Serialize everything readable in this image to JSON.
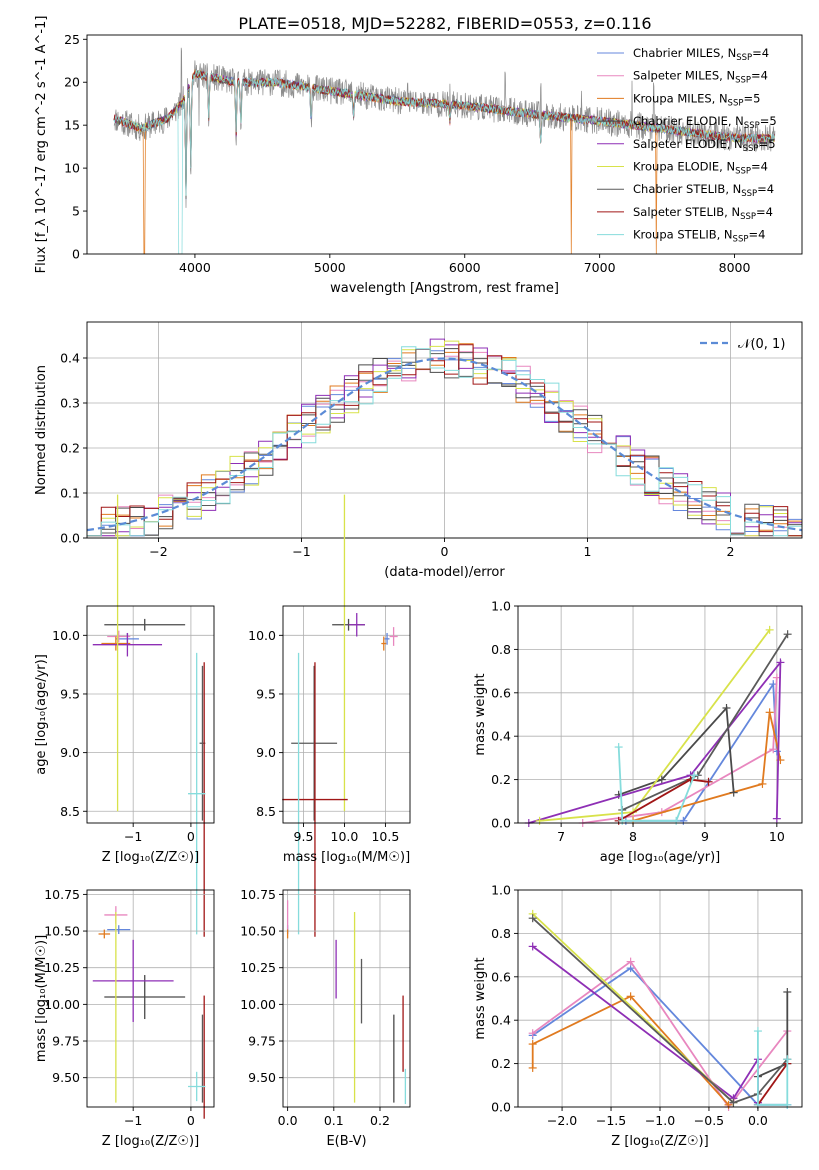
{
  "title": "PLATE=0518, MJD=52282, FIBERID=0553, z=0.116",
  "series_colors": [
    "#6487dc",
    "#e887bf",
    "#e07a1f",
    "#4a4a4a",
    "#8e2fb5",
    "#d8e24a",
    "#5a5a5a",
    "#a01616",
    "#86dcdc"
  ],
  "chart_data": [
    {
      "id": "spectrum",
      "type": "line",
      "title": "PLATE=0518, MJD=52282, FIBERID=0553, z=0.116",
      "xlabel": "wavelength [Angstrom, rest frame]",
      "ylabel": "Flux [f_λ 10^-17 erg cm^-2 s^-1 A^-1]",
      "xlim": [
        3200,
        8500
      ],
      "ylim": [
        0,
        25.5
      ],
      "xticks": [
        4000,
        5000,
        6000,
        7000,
        8000
      ],
      "yticks": [
        0,
        5,
        10,
        15,
        20,
        25
      ],
      "grid": false,
      "legend_position": "top-right",
      "legend": [
        {
          "text": "Chabrier MILES, N",
          "sub": "SSP",
          "tail": "=4",
          "color": "#6487dc"
        },
        {
          "text": "Salpeter MILES, N",
          "sub": "SSP",
          "tail": "=4",
          "color": "#e887bf"
        },
        {
          "text": "Kroupa MILES, N",
          "sub": "SSP",
          "tail": "=5",
          "color": "#e07a1f"
        },
        {
          "text": "Chabrier ELODIE, N",
          "sub": "SSP",
          "tail": "=5",
          "color": "#4a4a4a"
        },
        {
          "text": "Salpeter ELODIE, N",
          "sub": "SSP",
          "tail": "=5",
          "color": "#8e2fb5"
        },
        {
          "text": "Kroupa ELODIE, N",
          "sub": "SSP",
          "tail": "=4",
          "color": "#d8e24a"
        },
        {
          "text": "Chabrier STELIB, N",
          "sub": "SSP",
          "tail": "=4",
          "color": "#5a5a5a"
        },
        {
          "text": "Salpeter STELIB, N",
          "sub": "SSP",
          "tail": "=4",
          "color": "#a01616"
        },
        {
          "text": "Kroupa STELIB, N",
          "sub": "SSP",
          "tail": "=4",
          "color": "#86dcdc"
        }
      ],
      "observed_color": "#8c8c8c",
      "continuum": [
        [
          3400,
          15.8
        ],
        [
          3600,
          14.6
        ],
        [
          3800,
          15.8
        ],
        [
          3900,
          17.5
        ],
        [
          4000,
          21.0
        ],
        [
          4300,
          20.0
        ],
        [
          4600,
          20.0
        ],
        [
          5000,
          19.0
        ],
        [
          5500,
          17.8
        ],
        [
          6000,
          17.3
        ],
        [
          6500,
          16.3
        ],
        [
          7000,
          15.5
        ],
        [
          7500,
          14.5
        ],
        [
          8000,
          13.5
        ],
        [
          8300,
          13.5
        ]
      ],
      "absorption_lines": [
        [
          3934,
          12
        ],
        [
          3969,
          10
        ],
        [
          4102,
          5
        ],
        [
          4305,
          6
        ],
        [
          4340,
          5
        ],
        [
          4861,
          4
        ],
        [
          5175,
          3
        ],
        [
          5890,
          2
        ],
        [
          6563,
          3
        ]
      ],
      "spikes": [
        [
          3900,
          5
        ],
        [
          4030,
          -6
        ],
        [
          5577,
          3
        ],
        [
          5890,
          3
        ],
        [
          6300,
          5
        ],
        [
          6563,
          7
        ],
        [
          6865,
          4
        ],
        [
          7240,
          6
        ],
        [
          7400,
          5
        ]
      ],
      "drops_to_zero": [
        [
          3880,
          3905,
          "#86dcdc"
        ],
        [
          3620,
          3630,
          "#e07a1f"
        ],
        [
          6790,
          6795,
          "#e07a1f"
        ],
        [
          7415,
          7425,
          "#e07a1f"
        ]
      ]
    },
    {
      "id": "residuals",
      "type": "histogram",
      "xlabel": "(data-model)/error",
      "ylabel": "Normed distribution",
      "xlim": [
        -2.5,
        2.5
      ],
      "ylim": [
        0,
        0.48
      ],
      "xticks": [
        -2,
        -1,
        0,
        1,
        2
      ],
      "yticks": [
        0.0,
        0.1,
        0.2,
        0.3,
        0.4
      ],
      "grid": true,
      "legend_position": "top-right",
      "legend": [
        {
          "text": "𝒩(0, 1)",
          "color": "#5b8bd6",
          "style": "dashed"
        }
      ],
      "bin_width": 0.1,
      "noise_seed": 7
    },
    {
      "id": "age_vs_Z",
      "type": "errorbar",
      "xlabel": "Z [log₁₀(Z/Z☉)]",
      "ylabel": "age  [log₁₀(age/yr)]",
      "xlim": [
        -1.8,
        0.4
      ],
      "ylim": [
        8.4,
        10.25
      ],
      "xticks": [
        -1,
        0
      ],
      "yticks": [
        8.5,
        9.0,
        9.5,
        10.0
      ],
      "grid": true,
      "points": [
        {
          "x": -1.1,
          "y": 9.97,
          "xerr": 0.2,
          "yerr": 0.05,
          "color": "#6487dc"
        },
        {
          "x": -1.25,
          "y": 9.99,
          "xerr": 0.2,
          "yerr": 0.05,
          "color": "#e887bf"
        },
        {
          "x": -1.3,
          "y": 9.93,
          "xerr": 0.25,
          "yerr": 0.06,
          "color": "#e07a1f"
        },
        {
          "x": -0.8,
          "y": 10.09,
          "xerr": 0.7,
          "yerr": 0.05,
          "color": "#4a4a4a"
        },
        {
          "x": -1.1,
          "y": 9.92,
          "xerr": 0.6,
          "yerr": 0.1,
          "color": "#8e2fb5"
        },
        {
          "x": -1.27,
          "y": 9.85,
          "xerr": 0.0,
          "yerr": 1.35,
          "color": "#d8e24a"
        },
        {
          "x": 0.2,
          "y": 9.08,
          "xerr": 0.05,
          "yerr": 0.66,
          "color": "#5a5a5a"
        },
        {
          "x": 0.23,
          "y": 8.6,
          "xerr": 0.0,
          "yerr": 1.17,
          "color": "#a01616"
        },
        {
          "x": 0.1,
          "y": 8.65,
          "xerr": 0.15,
          "yerr": 1.2,
          "color": "#86dcdc"
        }
      ]
    },
    {
      "id": "age_vs_mass",
      "type": "errorbar",
      "xlabel": "mass [log₁₀(M/M☉)]",
      "ylabel": "",
      "xlim": [
        9.25,
        10.8
      ],
      "ylim": [
        8.4,
        10.25
      ],
      "xticks": [
        9.5,
        10.0,
        10.5
      ],
      "yticks": [
        8.5,
        9.0,
        9.5,
        10.0
      ],
      "grid": true,
      "points": [
        {
          "x": 10.52,
          "y": 9.97,
          "xerr": 0.03,
          "yerr": 0.05,
          "color": "#6487dc"
        },
        {
          "x": 10.6,
          "y": 9.99,
          "xerr": 0.05,
          "yerr": 0.08,
          "color": "#e887bf"
        },
        {
          "x": 10.48,
          "y": 9.93,
          "xerr": 0.03,
          "yerr": 0.06,
          "color": "#e07a1f"
        },
        {
          "x": 10.05,
          "y": 10.09,
          "xerr": 0.2,
          "yerr": 0.05,
          "color": "#4a4a4a"
        },
        {
          "x": 10.15,
          "y": 10.09,
          "xerr": 0.1,
          "yerr": 0.1,
          "color": "#8e2fb5"
        },
        {
          "x": 10.0,
          "y": 9.85,
          "xerr": 0.0,
          "yerr": 1.35,
          "color": "#d8e24a"
        },
        {
          "x": 9.63,
          "y": 9.08,
          "xerr": 0.28,
          "yerr": 0.66,
          "color": "#5a5a5a"
        },
        {
          "x": 9.64,
          "y": 8.6,
          "xerr": 0.4,
          "yerr": 1.17,
          "color": "#a01616"
        },
        {
          "x": 9.44,
          "y": 8.65,
          "xerr": 0.0,
          "yerr": 1.2,
          "color": "#86dcdc"
        }
      ]
    },
    {
      "id": "mass_weight_vs_age",
      "type": "line",
      "xlabel": "age  [log₁₀(age/yr)]",
      "ylabel": "mass weight",
      "xlim": [
        6.4,
        10.35
      ],
      "ylim": [
        0,
        1.0
      ],
      "xticks": [
        7,
        8,
        9,
        10
      ],
      "yticks": [
        0.0,
        0.2,
        0.4,
        0.6,
        0.8,
        1.0
      ],
      "grid": true,
      "series": [
        {
          "color": "#6487dc",
          "x": [
            7.9,
            8.7,
            9.95,
            10.0
          ],
          "y": [
            0.01,
            0.01,
            0.64,
            0.33
          ]
        },
        {
          "color": "#e887bf",
          "x": [
            7.3,
            8.4,
            9.95,
            10.0
          ],
          "y": [
            0.0,
            0.05,
            0.34,
            0.67
          ]
        },
        {
          "color": "#e07a1f",
          "x": [
            8.0,
            9.8,
            9.9,
            10.05
          ],
          "y": [
            0.01,
            0.18,
            0.51,
            0.29
          ]
        },
        {
          "color": "#4a4a4a",
          "x": [
            7.8,
            8.4,
            9.3,
            9.4
          ],
          "y": [
            0.13,
            0.2,
            0.53,
            0.14
          ]
        },
        {
          "color": "#8e2fb5",
          "x": [
            6.55,
            8.8,
            10.05,
            10.0
          ],
          "y": [
            0.0,
            0.22,
            0.74,
            0.02
          ]
        },
        {
          "color": "#d8e24a",
          "x": [
            6.7,
            8.0,
            9.9
          ],
          "y": [
            0.01,
            0.05,
            0.89
          ]
        },
        {
          "color": "#5a5a5a",
          "x": [
            7.85,
            8.9,
            10.15
          ],
          "y": [
            0.06,
            0.22,
            0.87
          ]
        },
        {
          "color": "#a01616",
          "x": [
            7.8,
            8.8,
            9.05
          ],
          "y": [
            0.01,
            0.2,
            0.19
          ]
        },
        {
          "color": "#86dcdc",
          "x": [
            7.8,
            7.85,
            8.6,
            8.85
          ],
          "y": [
            0.35,
            0.01,
            0.01,
            0.22
          ]
        }
      ]
    },
    {
      "id": "mass_vs_Z",
      "type": "errorbar",
      "xlabel": "Z [log₁₀(Z/Z☉)]",
      "ylabel": "mass [log₁₀(M/M☉)]",
      "xlim": [
        -1.8,
        0.4
      ],
      "ylim": [
        9.3,
        10.78
      ],
      "xticks": [
        -1,
        0
      ],
      "yticks": [
        9.5,
        9.75,
        10.0,
        10.25,
        10.5,
        10.75
      ],
      "grid": true,
      "points": [
        {
          "x": -1.25,
          "y": 10.51,
          "xerr": 0.2,
          "yerr": 0.03,
          "color": "#6487dc"
        },
        {
          "x": -1.3,
          "y": 10.61,
          "xerr": 0.2,
          "yerr": 0.06,
          "color": "#e887bf"
        },
        {
          "x": -1.5,
          "y": 10.48,
          "xerr": 0.1,
          "yerr": 0.03,
          "color": "#e07a1f"
        },
        {
          "x": -0.8,
          "y": 10.05,
          "xerr": 0.7,
          "yerr": 0.15,
          "color": "#4a4a4a"
        },
        {
          "x": -1.0,
          "y": 10.16,
          "xerr": 0.7,
          "yerr": 0.28,
          "color": "#8e2fb5"
        },
        {
          "x": -1.3,
          "y": 9.98,
          "xerr": 0.0,
          "yerr": 0.65,
          "color": "#d8e24a"
        },
        {
          "x": 0.2,
          "y": 9.63,
          "xerr": 0.0,
          "yerr": 0.3,
          "color": "#5a5a5a"
        },
        {
          "x": 0.23,
          "y": 9.64,
          "xerr": 0.0,
          "yerr": 0.42,
          "color": "#a01616"
        },
        {
          "x": 0.1,
          "y": 9.44,
          "xerr": 0.15,
          "yerr": 0.1,
          "color": "#86dcdc"
        }
      ]
    },
    {
      "id": "mass_vs_EBV",
      "type": "errorbar",
      "xlabel": "E(B-V)",
      "ylabel": "",
      "xlim": [
        -0.01,
        0.265
      ],
      "ylim": [
        9.3,
        10.78
      ],
      "xticks": [
        0.0,
        0.1,
        0.2
      ],
      "yticks": [
        9.5,
        9.75,
        10.0,
        10.25,
        10.5,
        10.75
      ],
      "grid": true,
      "points": [
        {
          "x": 0.0,
          "y": 10.51,
          "xerr": 0.0,
          "yerr": 0.03,
          "color": "#6487dc"
        },
        {
          "x": 0.0,
          "y": 10.61,
          "xerr": 0.0,
          "yerr": 0.1,
          "color": "#e887bf"
        },
        {
          "x": 0.0,
          "y": 10.48,
          "xerr": 0.0,
          "yerr": 0.03,
          "color": "#e07a1f"
        },
        {
          "x": 0.23,
          "y": 9.63,
          "xerr": 0.0,
          "yerr": 0.3,
          "color": "#4a4a4a"
        },
        {
          "x": 0.105,
          "y": 10.24,
          "xerr": 0.0,
          "yerr": 0.2,
          "color": "#8e2fb5"
        },
        {
          "x": 0.145,
          "y": 9.98,
          "xerr": 0.0,
          "yerr": 0.65,
          "color": "#d8e24a"
        },
        {
          "x": 0.16,
          "y": 10.09,
          "xerr": 0.0,
          "yerr": 0.22,
          "color": "#5a5a5a"
        },
        {
          "x": 0.25,
          "y": 9.8,
          "xerr": 0.0,
          "yerr": 0.26,
          "color": "#a01616"
        },
        {
          "x": 0.255,
          "y": 9.44,
          "xerr": 0.0,
          "yerr": 0.12,
          "color": "#86dcdc"
        }
      ]
    },
    {
      "id": "mass_weight_vs_Z",
      "type": "line",
      "xlabel": "Z [log₁₀(Z/Z☉)]",
      "ylabel": "mass weight",
      "xlim": [
        -2.45,
        0.45
      ],
      "ylim": [
        0,
        1.0
      ],
      "xticks": [
        -2.0,
        -1.5,
        -1.0,
        -0.5,
        0.0
      ],
      "yticks": [
        0.0,
        0.2,
        0.4,
        0.6,
        0.8,
        1.0
      ],
      "grid": true,
      "series": [
        {
          "color": "#6487dc",
          "x": [
            -2.3,
            -1.3,
            0.0,
            0.3
          ],
          "y": [
            0.33,
            0.64,
            0.01,
            0.01
          ]
        },
        {
          "color": "#e887bf",
          "x": [
            -2.3,
            -1.3,
            -0.3,
            0.3
          ],
          "y": [
            0.34,
            0.67,
            0.0,
            0.35
          ]
        },
        {
          "color": "#e07a1f",
          "x": [
            -2.3,
            -2.3,
            -1.3,
            -0.3
          ],
          "y": [
            0.18,
            0.29,
            0.51,
            0.01
          ]
        },
        {
          "color": "#4a4a4a",
          "x": [
            0.0,
            0.3,
            0.3
          ],
          "y": [
            0.14,
            0.2,
            0.53
          ]
        },
        {
          "color": "#8e2fb5",
          "x": [
            -2.3,
            -0.25,
            0.0,
            0.0
          ],
          "y": [
            0.74,
            0.04,
            0.22,
            0.02
          ]
        },
        {
          "color": "#d8e24a",
          "x": [
            -2.3,
            -0.25
          ],
          "y": [
            0.89,
            0.02
          ]
        },
        {
          "color": "#5a5a5a",
          "x": [
            -2.3,
            -0.25,
            0.0,
            0.3
          ],
          "y": [
            0.87,
            0.02,
            0.06,
            0.22
          ]
        },
        {
          "color": "#a01616",
          "x": [
            0.0,
            0.3
          ],
          "y": [
            0.01,
            0.2
          ]
        },
        {
          "color": "#86dcdc",
          "x": [
            0.0,
            0.0,
            0.3,
            0.3
          ],
          "y": [
            0.35,
            0.01,
            0.01,
            0.22
          ]
        }
      ]
    }
  ]
}
